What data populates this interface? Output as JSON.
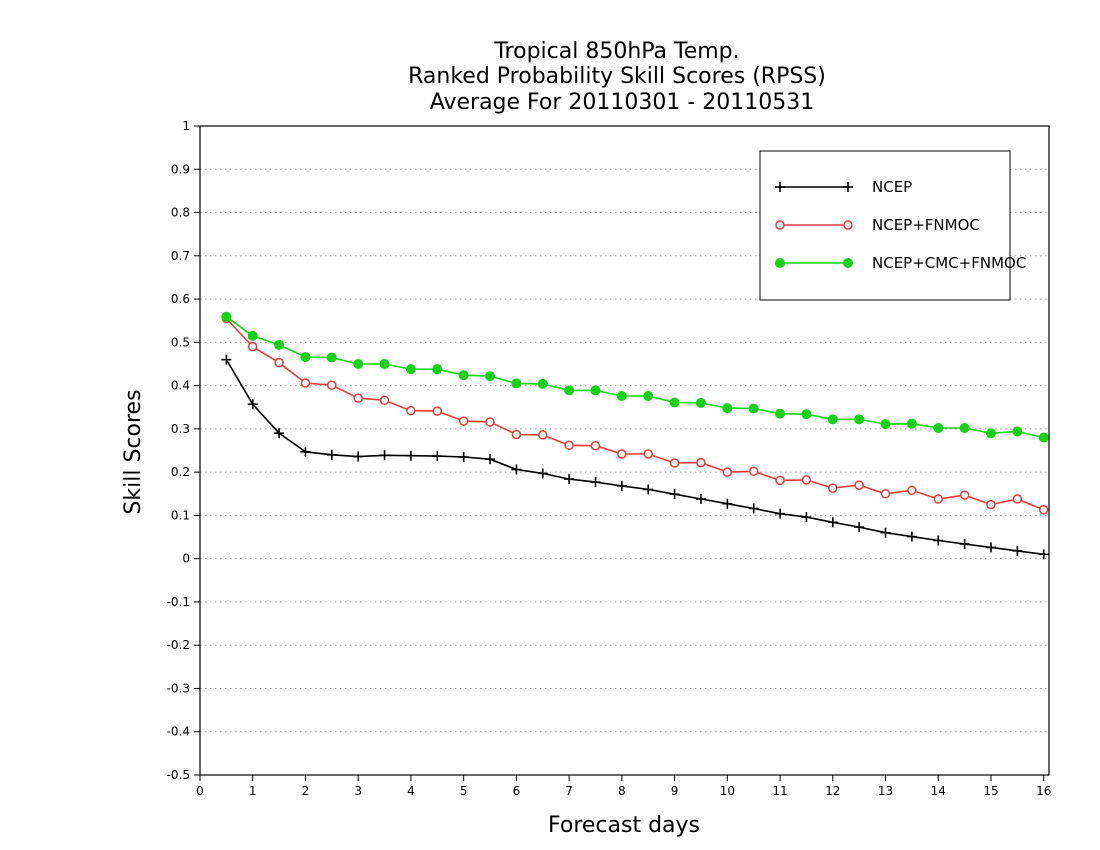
{
  "chart_data": {
    "type": "line",
    "title_lines": [
      "Tropical 850hPa Temp.",
      "Ranked Probability Skill Scores (RPSS)",
      "Average For 20110301 - 20110531"
    ],
    "xlabel": "Forecast days",
    "ylabel": "Skill Scores",
    "xlim": [
      0,
      16.1
    ],
    "ylim": [
      -0.5,
      1
    ],
    "x_ticks": [
      0,
      1,
      2,
      3,
      4,
      5,
      6,
      7,
      8,
      9,
      10,
      11,
      12,
      13,
      14,
      15,
      16
    ],
    "y_ticks": [
      -0.5,
      -0.4,
      -0.3,
      -0.2,
      -0.1,
      0,
      0.1,
      0.2,
      0.3,
      0.4,
      0.5,
      0.6,
      0.7,
      0.8,
      0.9,
      1
    ],
    "x_tick_labels": [
      "0",
      "1",
      "2",
      "3",
      "4",
      "5",
      "6",
      "7",
      "8",
      "9",
      "10",
      "11",
      "12",
      "13",
      "14",
      "15",
      "16"
    ],
    "y_tick_labels": [
      "-0.5",
      "-0.4",
      "-0.3",
      "-0.2",
      "-0.1",
      "0",
      "0.1",
      "0.2",
      "0.3",
      "0.4",
      "0.5",
      "0.6",
      "0.7",
      "0.8",
      "0.9",
      "1"
    ],
    "grid": "horizontal-dotted",
    "legend_position": "top-right",
    "x": [
      0.5,
      1,
      1.5,
      2,
      2.5,
      3,
      3.5,
      4,
      4.5,
      5,
      5.5,
      6,
      6.5,
      7,
      7.5,
      8,
      8.5,
      9,
      9.5,
      10,
      10.5,
      11,
      11.5,
      12,
      12.5,
      13,
      13.5,
      14,
      14.5,
      15,
      15.5,
      16
    ],
    "series": [
      {
        "name": "NCEP",
        "color": "#000000",
        "marker": "plus",
        "values": [
          0.46,
          0.357,
          0.29,
          0.247,
          0.24,
          0.236,
          0.239,
          0.238,
          0.237,
          0.235,
          0.23,
          0.206,
          0.197,
          0.184,
          0.177,
          0.168,
          0.16,
          0.149,
          0.138,
          0.127,
          0.116,
          0.104,
          0.096,
          0.084,
          0.073,
          0.06,
          0.051,
          0.042,
          0.034,
          0.026,
          0.018,
          0.01
        ]
      },
      {
        "name": "NCEP+FNMOC",
        "color": "#ec3a3a",
        "marker": "open-circle",
        "values": [
          0.555,
          0.49,
          0.453,
          0.406,
          0.401,
          0.371,
          0.366,
          0.342,
          0.341,
          0.318,
          0.316,
          0.287,
          0.286,
          0.262,
          0.261,
          0.242,
          0.242,
          0.221,
          0.222,
          0.2,
          0.202,
          0.181,
          0.182,
          0.163,
          0.17,
          0.15,
          0.158,
          0.138,
          0.147,
          0.125,
          0.138,
          0.113
        ]
      },
      {
        "name": "NCEP+CMC+FNMOC",
        "color": "#14d214",
        "marker": "filled-circle",
        "values": [
          0.559,
          0.515,
          0.494,
          0.466,
          0.465,
          0.45,
          0.45,
          0.438,
          0.438,
          0.424,
          0.422,
          0.405,
          0.404,
          0.389,
          0.389,
          0.376,
          0.376,
          0.361,
          0.36,
          0.348,
          0.347,
          0.335,
          0.334,
          0.322,
          0.322,
          0.311,
          0.312,
          0.302,
          0.302,
          0.29,
          0.294,
          0.28
        ]
      }
    ]
  }
}
